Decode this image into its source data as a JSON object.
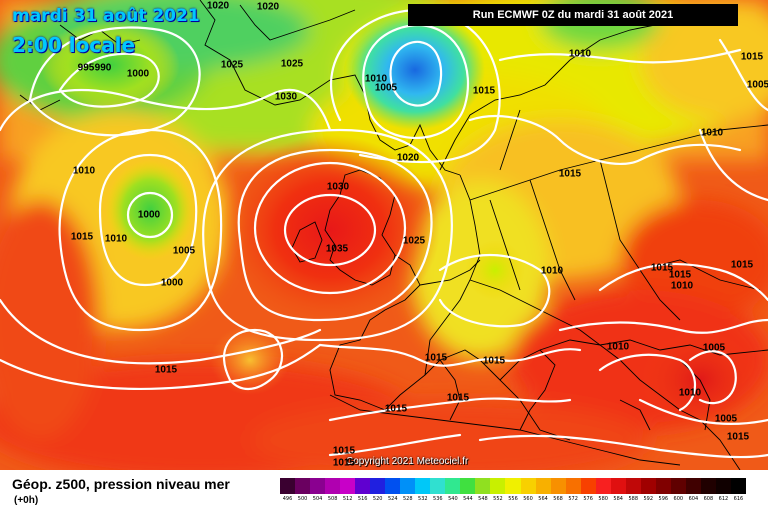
{
  "header": {
    "date": "mardi 31 août 2021",
    "local_time": "2:00 locale",
    "run": "Run ECMWF 0Z du mardi 31 août 2021"
  },
  "copyright": "Copyright 2021 Meteociel.fr",
  "legend": {
    "title": "Géop. z500, pression niveau mer",
    "subtitle": "(+0h)",
    "values": [
      "496",
      "500",
      "504",
      "508",
      "512",
      "516",
      "520",
      "524",
      "528",
      "532",
      "536",
      "540",
      "544",
      "548",
      "552",
      "556",
      "560",
      "564",
      "568",
      "572",
      "576",
      "580",
      "584",
      "588",
      "592",
      "596",
      "600",
      "604",
      "608",
      "612",
      "616"
    ],
    "colors": [
      "#3a0030",
      "#6a0060",
      "#8a0090",
      "#b000b0",
      "#c800c8",
      "#6000d0",
      "#2020e0",
      "#0050f0",
      "#0090f8",
      "#00c8f8",
      "#30e0d0",
      "#30e890",
      "#40e040",
      "#90e020",
      "#c8f000",
      "#f0f000",
      "#f8d000",
      "#f8b000",
      "#f89000",
      "#f87000",
      "#f84000",
      "#f82020",
      "#e01010",
      "#c00808",
      "#a00000",
      "#800000",
      "#600000",
      "#400000",
      "#200000",
      "#100000",
      "#000000"
    ]
  },
  "isobars": [
    {
      "label": "1020"
    },
    {
      "label": "1020"
    },
    {
      "label": "995"
    },
    {
      "label": "990"
    },
    {
      "label": "1000"
    },
    {
      "label": "1025"
    },
    {
      "label": "1025"
    },
    {
      "label": "1030"
    },
    {
      "label": "1010"
    },
    {
      "label": "1005"
    },
    {
      "label": "1015"
    },
    {
      "label": "1010"
    },
    {
      "label": "1015"
    },
    {
      "label": "1005"
    },
    {
      "label": "1010"
    },
    {
      "label": "1020"
    },
    {
      "label": "1015"
    },
    {
      "label": "1010"
    },
    {
      "label": "1030"
    },
    {
      "label": "1000"
    },
    {
      "label": "1015"
    },
    {
      "label": "1010"
    },
    {
      "label": "1005"
    },
    {
      "label": "1000"
    },
    {
      "label": "1035"
    },
    {
      "label": "1025"
    },
    {
      "label": "1010"
    },
    {
      "label": "1015"
    },
    {
      "label": "1015"
    },
    {
      "label": "1010"
    },
    {
      "label": "1015"
    },
    {
      "label": "1015"
    },
    {
      "label": "1015"
    },
    {
      "label": "1010"
    },
    {
      "label": "1005"
    },
    {
      "label": "1015"
    },
    {
      "label": "1015"
    },
    {
      "label": "1010"
    },
    {
      "label": "1015"
    },
    {
      "label": "1005"
    },
    {
      "label": "1015"
    },
    {
      "label": "1015"
    },
    {
      "label": "1015"
    }
  ]
}
